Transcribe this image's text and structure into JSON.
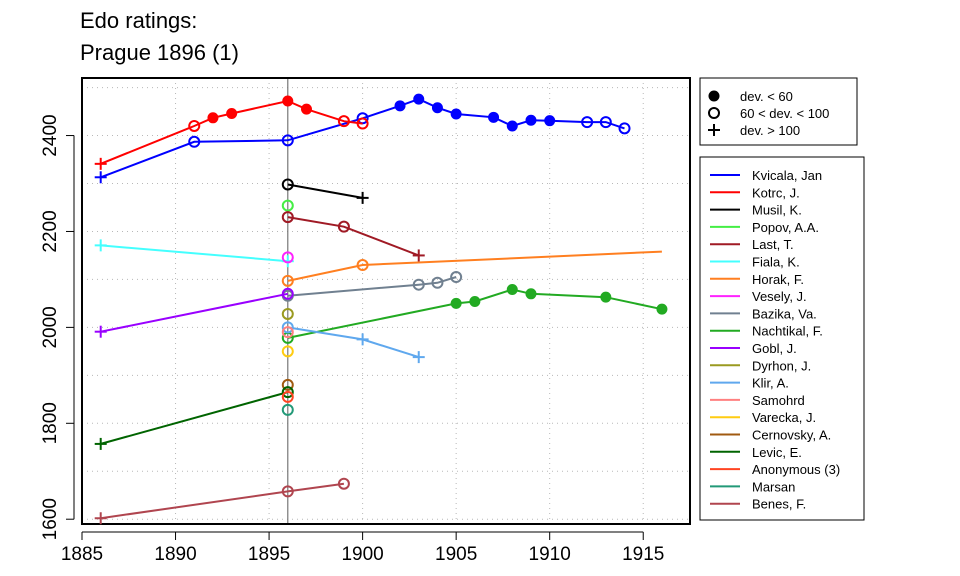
{
  "chart_data": {
    "type": "line",
    "title": [
      "Edo ratings:",
      "Prague 1896 (1)"
    ],
    "xlabel": "",
    "ylabel": "",
    "xlim": [
      1885,
      1917.5
    ],
    "ylim": [
      1590,
      2520
    ],
    "xticks": [
      1885,
      1890,
      1895,
      1900,
      1905,
      1910,
      1915
    ],
    "yticks": [
      1600,
      1800,
      2000,
      2200,
      2400
    ],
    "grid": true,
    "event_year": 1896,
    "marker_legend": [
      {
        "marker": "filled",
        "label": "dev. < 60"
      },
      {
        "marker": "open",
        "label": "60 < dev. < 100"
      },
      {
        "marker": "cross",
        "label": "dev. > 100"
      }
    ],
    "series": [
      {
        "name": "Kvicala, Jan",
        "color": "#0000ff",
        "points": [
          [
            1886,
            2313,
            "cross"
          ],
          [
            1891,
            2387,
            "open"
          ],
          [
            1896,
            2390,
            "open"
          ],
          [
            1900,
            2436,
            "open"
          ],
          [
            1902,
            2462,
            "filled"
          ],
          [
            1903,
            2476,
            "filled"
          ],
          [
            1904,
            2458,
            "filled"
          ],
          [
            1905,
            2445,
            "filled"
          ],
          [
            1907,
            2438,
            "filled"
          ],
          [
            1908,
            2420,
            "filled"
          ],
          [
            1909,
            2432,
            "filled"
          ],
          [
            1910,
            2431,
            "filled"
          ],
          [
            1912,
            2428,
            "open"
          ],
          [
            1913,
            2428,
            "open"
          ],
          [
            1914,
            2415,
            "open"
          ]
        ]
      },
      {
        "name": "Kotrc, J.",
        "color": "#ff0000",
        "points": [
          [
            1886,
            2341,
            "cross"
          ],
          [
            1891,
            2420,
            "open"
          ],
          [
            1892,
            2437,
            "filled"
          ],
          [
            1893,
            2446,
            "filled"
          ],
          [
            1896,
            2472,
            "filled"
          ],
          [
            1897,
            2455,
            "filled"
          ],
          [
            1899,
            2430,
            "open"
          ],
          [
            1900,
            2425,
            "open"
          ]
        ]
      },
      {
        "name": "Musil, K.",
        "color": "#000000",
        "points": [
          [
            1896,
            2298,
            "open"
          ],
          [
            1900,
            2270,
            "cross"
          ]
        ]
      },
      {
        "name": "Popov, A.A.",
        "color": "#44ee44",
        "points": [
          [
            1896,
            2254,
            "open"
          ]
        ]
      },
      {
        "name": "Last, T.",
        "color": "#a01a25",
        "points": [
          [
            1896,
            2230,
            "open"
          ],
          [
            1899,
            2210,
            "open"
          ],
          [
            1903,
            2150,
            "cross"
          ]
        ]
      },
      {
        "name": "Fiala, K.",
        "color": "#44ffff",
        "points": [
          [
            1886,
            2171,
            "cross"
          ],
          [
            1896,
            2138,
            "cross"
          ]
        ]
      },
      {
        "name": "Horak, F.",
        "color": "#ff7f20",
        "points": [
          [
            1896,
            2097,
            "open"
          ],
          [
            1900,
            2130,
            "open"
          ],
          [
            1916,
            2158,
            "none"
          ]
        ]
      },
      {
        "name": "Vesely, J.",
        "color": "#ff22ff",
        "points": [
          [
            1896,
            2146,
            "open"
          ]
        ]
      },
      {
        "name": "Bazika, Va.",
        "color": "#708090",
        "points": [
          [
            1896,
            2066,
            "open"
          ],
          [
            1903,
            2089,
            "open"
          ],
          [
            1904,
            2093,
            "open"
          ],
          [
            1905,
            2105,
            "open"
          ]
        ]
      },
      {
        "name": "Nachtikal, F.",
        "color": "#22aa22",
        "points": [
          [
            1896,
            1978,
            "open"
          ],
          [
            1905,
            2050,
            "filled"
          ],
          [
            1906,
            2054,
            "filled"
          ],
          [
            1908,
            2079,
            "filled"
          ],
          [
            1909,
            2070,
            "filled"
          ],
          [
            1913,
            2063,
            "filled"
          ],
          [
            1916,
            2038,
            "filled"
          ]
        ]
      },
      {
        "name": "Gobl, J.",
        "color": "#9900ff",
        "points": [
          [
            1886,
            1991,
            "cross"
          ],
          [
            1896,
            2070,
            "open"
          ]
        ]
      },
      {
        "name": "Dyrhon, J.",
        "color": "#9a9a20",
        "points": [
          [
            1896,
            2028,
            "open"
          ]
        ]
      },
      {
        "name": "Klir, A.",
        "color": "#5fa8ee",
        "points": [
          [
            1896,
            2000,
            "open"
          ],
          [
            1900,
            1975,
            "cross"
          ],
          [
            1903,
            1938,
            "cross"
          ]
        ]
      },
      {
        "name": "Samohrd",
        "color": "#ff8080",
        "points": [
          [
            1896,
            1990,
            "open"
          ]
        ]
      },
      {
        "name": "Varecka, J.",
        "color": "#ffcc11",
        "points": [
          [
            1896,
            1950,
            "open"
          ]
        ]
      },
      {
        "name": "Cernovsky, A.",
        "color": "#a05a10",
        "points": [
          [
            1896,
            1880,
            "open"
          ]
        ]
      },
      {
        "name": "Levic, E.",
        "color": "#006400",
        "points": [
          [
            1886,
            1757,
            "cross"
          ],
          [
            1896,
            1865,
            "open"
          ]
        ]
      },
      {
        "name": "Anonymous (3)",
        "color": "#ff4422",
        "points": [
          [
            1896,
            1855,
            "open"
          ]
        ]
      },
      {
        "name": "Marsan",
        "color": "#229977",
        "points": [
          [
            1896,
            1828,
            "open"
          ]
        ]
      },
      {
        "name": "Benes, F.",
        "color": "#b0454f",
        "points": [
          [
            1886,
            1602,
            "cross"
          ],
          [
            1896,
            1658,
            "open"
          ],
          [
            1899,
            1674,
            "open"
          ]
        ]
      }
    ]
  }
}
